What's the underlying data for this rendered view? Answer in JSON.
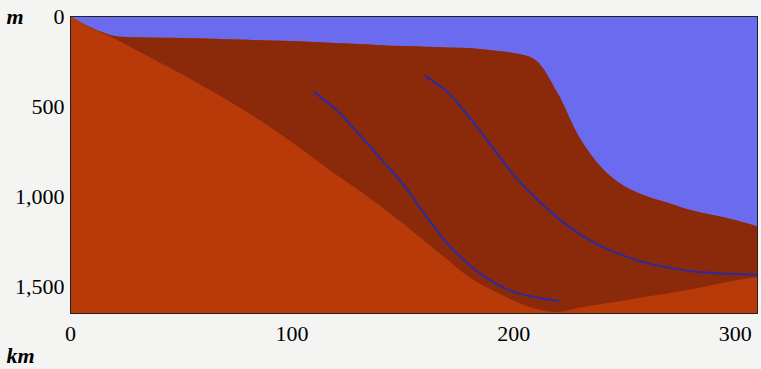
{
  "chart_data": {
    "type": "area",
    "color": "#b83a08",
    "x_label": "km",
    "y_label": "m",
    "x": [
      0,
      10,
      20,
      30,
      40,
      50,
      60,
      70,
      80,
      90,
      100,
      110,
      120,
      130,
      140,
      150,
      160,
      170,
      180,
      190,
      200,
      210,
      220,
      230,
      240,
      250,
      260,
      270,
      280,
      290,
      300,
      310
    ],
    "xlim": [
      0,
      310
    ],
    "ylim": [
      1650,
      0
    ],
    "xticks": [
      0,
      100,
      200,
      300
    ],
    "yticks": [
      0,
      500,
      1000,
      1500
    ],
    "series": [
      {
        "color": "#6b6bf0",
        "values": [
          0,
          67,
          111,
          118,
          121,
          122,
          125,
          129,
          132,
          136,
          139,
          145,
          150,
          156,
          162,
          167,
          171,
          175,
          178,
          190,
          206,
          244,
          428,
          678,
          844,
          944,
          1000,
          1039,
          1078,
          1106,
          1133,
          1167
        ]
      },
      {
        "color": "#8a2a0a",
        "values": [
          0,
          70,
          125,
          190,
          255,
          320,
          390,
          460,
          535,
          615,
          700,
          790,
          880,
          965,
          1055,
          1150,
          1250,
          1350,
          1450,
          1520,
          1580,
          1625,
          1645,
          1620,
          1600,
          1580,
          1560,
          1540,
          1520,
          1495,
          1470,
          1450
        ]
      },
      {
        "type": "line",
        "color": "#2b2ba0",
        "values": [
          null,
          null,
          null,
          null,
          null,
          null,
          null,
          null,
          null,
          null,
          null,
          420,
          520,
          650,
          790,
          930,
          1100,
          1260,
          1380,
          1470,
          1530,
          1560,
          1580,
          null,
          null,
          null,
          null,
          null,
          null,
          null,
          null,
          null
        ]
      },
      {
        "type": "line",
        "color": "#2b2ba0",
        "values": [
          null,
          null,
          null,
          null,
          null,
          null,
          null,
          null,
          null,
          null,
          null,
          null,
          null,
          null,
          null,
          null,
          330,
          420,
          560,
          720,
          880,
          1010,
          1120,
          1210,
          1280,
          1330,
          1370,
          1395,
          1415,
          1425,
          1430,
          1435
        ]
      }
    ]
  }
}
